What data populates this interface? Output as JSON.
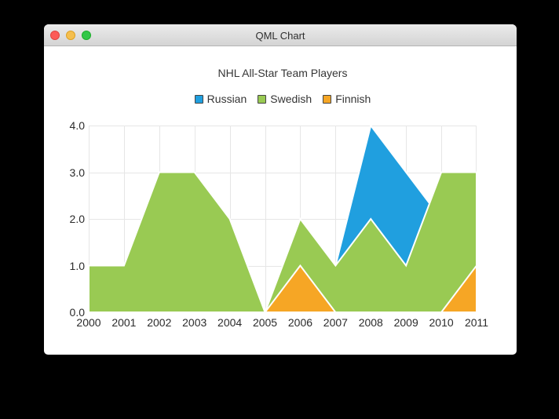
{
  "window": {
    "title": "QML Chart",
    "controls": {
      "close_color": "#fc5b57",
      "minimize_color": "#f5bf4f",
      "zoom_color": "#33c748"
    }
  },
  "chart": {
    "title": "NHL All-Star Team Players"
  },
  "chart_data": {
    "type": "area",
    "title": "NHL All-Star Team Players",
    "mode": "overlap",
    "grid": true,
    "legend_position": "top",
    "x": [
      2000,
      2001,
      2002,
      2003,
      2004,
      2005,
      2006,
      2007,
      2008,
      2009,
      2010,
      2011
    ],
    "x_tick_labels": [
      "2000",
      "2001",
      "2002",
      "2003",
      "2004",
      "2005",
      "2006",
      "2007",
      "2008",
      "2009",
      "2010",
      "2011"
    ],
    "y_tick_labels": [
      "0.0",
      "1.0",
      "2.0",
      "3.0",
      "4.0"
    ],
    "xlim": [
      2000,
      2011
    ],
    "ylim": [
      0,
      4
    ],
    "baseline": 0,
    "series_border_color": "#ffffff",
    "grid_color": "#e6e6e6",
    "series": [
      {
        "name": "Russian",
        "color": "#209fdf",
        "values": [
          1,
          1,
          1,
          1,
          1,
          0,
          1,
          1,
          4,
          3,
          2,
          1
        ]
      },
      {
        "name": "Swedish",
        "color": "#99ca53",
        "values": [
          1,
          1,
          3,
          3,
          2,
          0,
          2,
          1,
          2,
          1,
          3,
          3
        ]
      },
      {
        "name": "Finnish",
        "color": "#f6a625",
        "values": [
          0,
          0,
          0,
          0,
          0,
          0,
          1,
          0,
          0,
          0,
          0,
          1
        ]
      }
    ]
  }
}
